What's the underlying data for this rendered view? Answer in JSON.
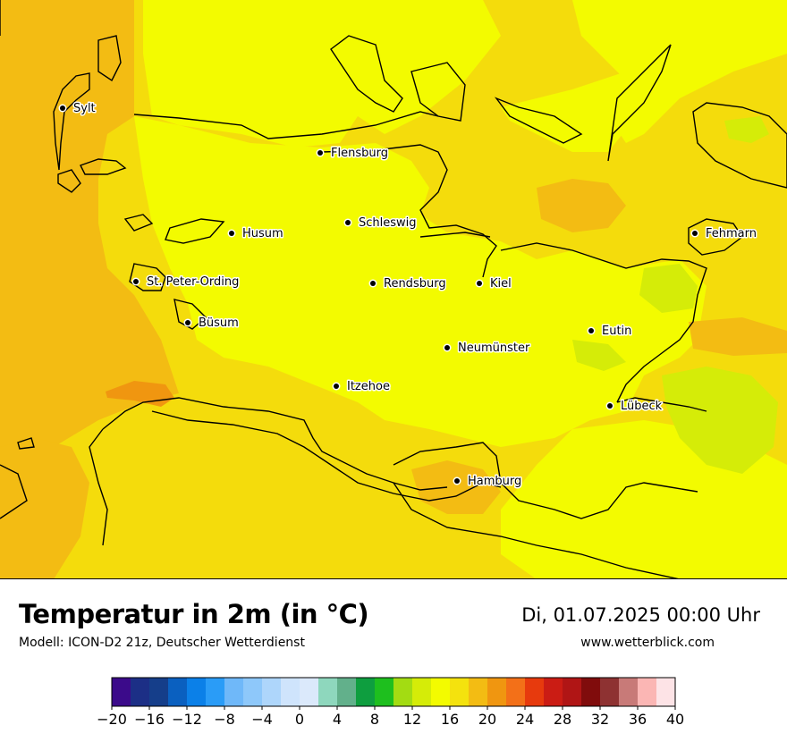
{
  "title": "Temperatur in 2m (in °C)",
  "model": "Modell: ICON-D2 21z, Deutscher Wetterdienst",
  "datetime": "Di, 01.07.2025 00:00 Uhr",
  "website": "www.wetterblick.com",
  "map": {
    "region": "Schleswig-Holstein",
    "cities": [
      {
        "name": "Sylt",
        "temp_class": 18
      },
      {
        "name": "Flensburg",
        "temp_class": 16
      },
      {
        "name": "Schleswig",
        "temp_class": 16
      },
      {
        "name": "Husum",
        "temp_class": 16
      },
      {
        "name": "St. Peter-Ording",
        "temp_class": 18
      },
      {
        "name": "Rendsburg",
        "temp_class": 16
      },
      {
        "name": "Kiel",
        "temp_class": 16
      },
      {
        "name": "Fehmarn",
        "temp_class": 18
      },
      {
        "name": "Büsum",
        "temp_class": 18
      },
      {
        "name": "Eutin",
        "temp_class": 16
      },
      {
        "name": "Neumünster",
        "temp_class": 16
      },
      {
        "name": "Itzehoe",
        "temp_class": 16
      },
      {
        "name": "Lübeck",
        "temp_class": 14
      },
      {
        "name": "Hamburg",
        "temp_class": 20
      }
    ]
  },
  "legend": {
    "min": -20,
    "max": 40,
    "step": 2,
    "tick_labels": [
      "−20",
      "−16",
      "−12",
      "−8",
      "−4",
      "0",
      "4",
      "8",
      "12",
      "16",
      "20",
      "24",
      "28",
      "32",
      "36",
      "40"
    ],
    "colors": [
      "#3b0a8a",
      "#1c2f86",
      "#153e8a",
      "#0a60c0",
      "#0b80e8",
      "#2a9cf7",
      "#6fb8f9",
      "#8ec8fa",
      "#aed6fb",
      "#cfe4fc",
      "#dbe9fb",
      "#8ed7bd",
      "#62b08b",
      "#0e9e3f",
      "#1ebf1e",
      "#a3dc12",
      "#d5ec08",
      "#f3fb00",
      "#f4e20e",
      "#f3bc13",
      "#f09610",
      "#f37018",
      "#e73a0d",
      "#cb1c14",
      "#b01515",
      "#800c0c",
      "#8e3232",
      "#c87a78",
      "#fbb6b4",
      "#fde3e6"
    ]
  }
}
